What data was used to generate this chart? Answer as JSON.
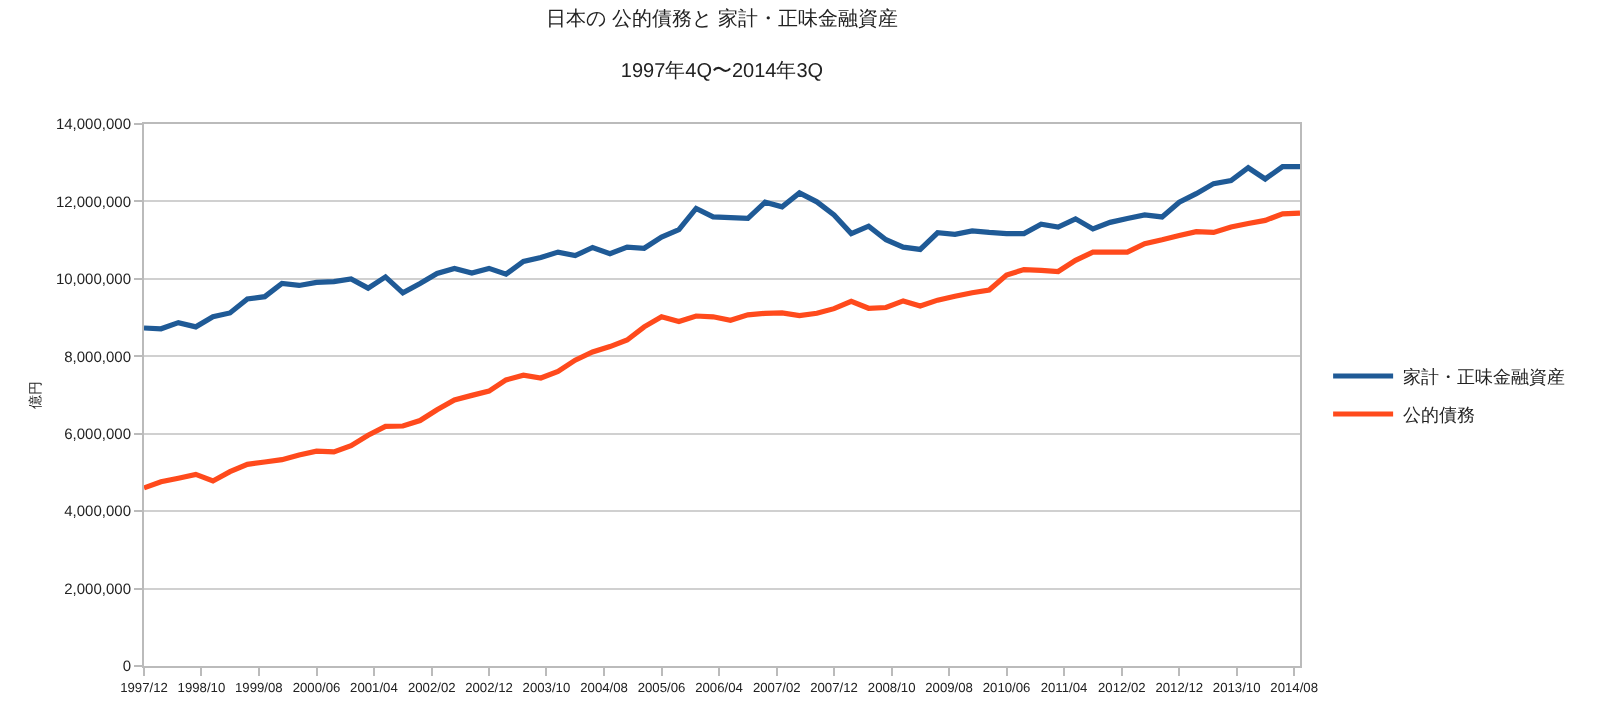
{
  "chart_data": {
    "type": "line",
    "title": "日本の 公的債務と 家計・正味金融資産",
    "subtitle": "1997年4Q〜2014年3Q",
    "ylabel": "億円",
    "x": [
      "1997-12",
      "1998-03",
      "1998-06",
      "1998-09",
      "1998-12",
      "1999-03",
      "1999-06",
      "1999-09",
      "1999-12",
      "2000-03",
      "2000-06",
      "2000-09",
      "2000-12",
      "2001-03",
      "2001-06",
      "2001-09",
      "2001-12",
      "2002-03",
      "2002-06",
      "2002-09",
      "2002-12",
      "2003-03",
      "2003-06",
      "2003-09",
      "2003-12",
      "2004-03",
      "2004-06",
      "2004-09",
      "2004-12",
      "2005-03",
      "2005-06",
      "2005-09",
      "2005-12",
      "2006-03",
      "2006-06",
      "2006-09",
      "2006-12",
      "2007-03",
      "2007-06",
      "2007-09",
      "2007-12",
      "2008-03",
      "2008-06",
      "2008-09",
      "2008-12",
      "2009-03",
      "2009-06",
      "2009-09",
      "2009-12",
      "2010-03",
      "2010-06",
      "2010-09",
      "2010-12",
      "2011-03",
      "2011-06",
      "2011-09",
      "2011-12",
      "2012-03",
      "2012-06",
      "2012-09",
      "2012-12",
      "2013-03",
      "2013-06",
      "2013-09",
      "2013-12",
      "2014-03",
      "2014-06",
      "2014-09"
    ],
    "series": [
      {
        "name": "家計・正味金融資産",
        "color": "#1f5a96",
        "values": [
          8730000,
          8710000,
          8870000,
          8760000,
          9020000,
          9120000,
          9480000,
          9540000,
          9880000,
          9830000,
          9910000,
          9930000,
          10000000,
          9760000,
          10050000,
          9640000,
          9880000,
          10140000,
          10270000,
          10150000,
          10270000,
          10120000,
          10450000,
          10550000,
          10690000,
          10600000,
          10810000,
          10650000,
          10820000,
          10790000,
          11080000,
          11270000,
          11820000,
          11600000,
          11580000,
          11560000,
          11980000,
          11860000,
          12220000,
          11990000,
          11650000,
          11170000,
          11360000,
          11010000,
          10820000,
          10760000,
          11190000,
          11150000,
          11240000,
          11200000,
          11170000,
          11170000,
          11410000,
          11340000,
          11550000,
          11290000,
          11460000,
          11560000,
          11650000,
          11600000,
          11980000,
          12200000,
          12460000,
          12540000,
          12870000,
          12580000,
          12900000,
          12900000
        ]
      },
      {
        "name": "公的債務",
        "color": "#ff4a1c",
        "values": [
          4600000,
          4760000,
          4850000,
          4950000,
          4780000,
          5020000,
          5210000,
          5270000,
          5330000,
          5450000,
          5550000,
          5530000,
          5690000,
          5960000,
          6190000,
          6200000,
          6340000,
          6620000,
          6870000,
          6990000,
          7100000,
          7390000,
          7510000,
          7440000,
          7610000,
          7900000,
          8110000,
          8250000,
          8420000,
          8760000,
          9020000,
          8900000,
          9040000,
          9020000,
          8930000,
          9070000,
          9110000,
          9120000,
          9050000,
          9110000,
          9230000,
          9420000,
          9240000,
          9260000,
          9430000,
          9300000,
          9450000,
          9550000,
          9640000,
          9710000,
          10100000,
          10240000,
          10220000,
          10190000,
          10480000,
          10690000,
          10690000,
          10690000,
          10910000,
          11010000,
          11120000,
          11220000,
          11200000,
          11340000,
          11430000,
          11510000,
          11680000,
          11700000
        ]
      }
    ],
    "xlim": [
      "1997-12",
      "2014-09"
    ],
    "xticks": [
      {
        "value": "1997-12",
        "label": "1997/12"
      },
      {
        "value": "1998-10",
        "label": "1998/10"
      },
      {
        "value": "1999-08",
        "label": "1999/08"
      },
      {
        "value": "2000-06",
        "label": "2000/06"
      },
      {
        "value": "2001-04",
        "label": "2001/04"
      },
      {
        "value": "2002-02",
        "label": "2002/02"
      },
      {
        "value": "2002-12",
        "label": "2002/12"
      },
      {
        "value": "2003-10",
        "label": "2003/10"
      },
      {
        "value": "2004-08",
        "label": "2004/08"
      },
      {
        "value": "2005-06",
        "label": "2005/06"
      },
      {
        "value": "2006-04",
        "label": "2006/04"
      },
      {
        "value": "2007-02",
        "label": "2007/02"
      },
      {
        "value": "2007-12",
        "label": "2007/12"
      },
      {
        "value": "2008-10",
        "label": "2008/10"
      },
      {
        "value": "2009-08",
        "label": "2009/08"
      },
      {
        "value": "2010-06",
        "label": "2010/06"
      },
      {
        "value": "2011-04",
        "label": "2011/04"
      },
      {
        "value": "2012-02",
        "label": "2012/02"
      },
      {
        "value": "2012-12",
        "label": "2012/12"
      },
      {
        "value": "2013-10",
        "label": "2013/10"
      },
      {
        "value": "2014-08",
        "label": "2014/08"
      }
    ],
    "ylim": [
      0,
      14000000
    ],
    "yticks": [
      0,
      {
        "value": 2000000,
        "label": "2,000,000"
      },
      {
        "value": 4000000,
        "label": "4,000,000"
      },
      {
        "value": 6000000,
        "label": "6,000,000"
      },
      {
        "value": 8000000,
        "label": "8,000,000"
      },
      {
        "value": 10000000,
        "label": "10,000,000"
      },
      {
        "value": 12000000,
        "label": "12,000,000"
      },
      {
        "value": 14000000,
        "label": "14,000,000"
      }
    ],
    "grid": "y",
    "legend": "right",
    "marker": "none",
    "line_style": "solid"
  }
}
